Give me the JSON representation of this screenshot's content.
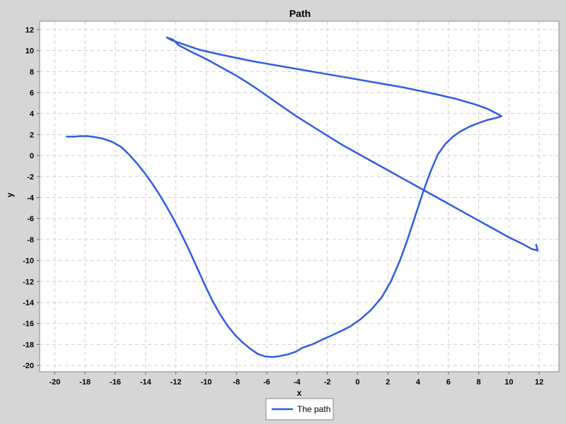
{
  "chart_data": {
    "type": "line",
    "title": "Path",
    "xlabel": "x",
    "ylabel": "y",
    "xlim": [
      -21,
      13.3
    ],
    "ylim": [
      -20.6,
      12.8
    ],
    "x_ticks": [
      -20,
      -18,
      -16,
      -14,
      -12,
      -10,
      -8,
      -6,
      -4,
      -2,
      0,
      2,
      4,
      6,
      8,
      10,
      12
    ],
    "y_ticks": [
      12,
      10,
      8,
      6,
      4,
      2,
      0,
      -2,
      -4,
      -6,
      -8,
      -10,
      -12,
      -14,
      -16,
      -18,
      -20
    ],
    "grid": true,
    "legend_position": "bottom-center",
    "colors": {
      "series": "#2f5ce6",
      "plot_bg": "#ffffff",
      "page_bg": "#d6d6d6",
      "grid": "#cfcfcf"
    },
    "series": [
      {
        "name": "The path",
        "points": [
          [
            -19.2,
            1.8
          ],
          [
            -18.8,
            1.8
          ],
          [
            -18.3,
            1.85
          ],
          [
            -17.8,
            1.85
          ],
          [
            -17.3,
            1.75
          ],
          [
            -16.8,
            1.6
          ],
          [
            -16.2,
            1.3
          ],
          [
            -15.6,
            0.8
          ],
          [
            -15.1,
            0.1
          ],
          [
            -14.6,
            -0.7
          ],
          [
            -14.1,
            -1.6
          ],
          [
            -13.6,
            -2.6
          ],
          [
            -13.1,
            -3.7
          ],
          [
            -12.6,
            -4.9
          ],
          [
            -12.1,
            -6.2
          ],
          [
            -11.6,
            -7.6
          ],
          [
            -11.1,
            -9.1
          ],
          [
            -10.6,
            -10.7
          ],
          [
            -10.1,
            -12.3
          ],
          [
            -9.6,
            -13.8
          ],
          [
            -9.1,
            -15.1
          ],
          [
            -8.6,
            -16.2
          ],
          [
            -8.1,
            -17.1
          ],
          [
            -7.6,
            -17.8
          ],
          [
            -7.1,
            -18.4
          ],
          [
            -6.6,
            -18.9
          ],
          [
            -6.1,
            -19.15
          ],
          [
            -5.6,
            -19.2
          ],
          [
            -5.1,
            -19.1
          ],
          [
            -4.6,
            -18.95
          ],
          [
            -4.1,
            -18.7
          ],
          [
            -3.6,
            -18.3
          ],
          [
            -3.0,
            -18.0
          ],
          [
            -2.4,
            -17.6
          ],
          [
            -1.8,
            -17.2
          ],
          [
            -1.2,
            -16.8
          ],
          [
            -0.5,
            -16.3
          ],
          [
            0.2,
            -15.6
          ],
          [
            0.9,
            -14.7
          ],
          [
            1.6,
            -13.5
          ],
          [
            2.2,
            -12.0
          ],
          [
            2.8,
            -10.0
          ],
          [
            3.3,
            -8.0
          ],
          [
            3.8,
            -5.8
          ],
          [
            4.3,
            -3.6
          ],
          [
            4.8,
            -1.6
          ],
          [
            5.3,
            0.1
          ],
          [
            5.8,
            1.1
          ],
          [
            6.3,
            1.8
          ],
          [
            6.8,
            2.3
          ],
          [
            7.4,
            2.75
          ],
          [
            8.0,
            3.1
          ],
          [
            8.6,
            3.4
          ],
          [
            9.2,
            3.6
          ],
          [
            9.5,
            3.75
          ],
          [
            9.2,
            4.0
          ],
          [
            8.5,
            4.5
          ],
          [
            7.7,
            4.9
          ],
          [
            6.5,
            5.4
          ],
          [
            5.0,
            5.9
          ],
          [
            3.0,
            6.5
          ],
          [
            1.0,
            7.0
          ],
          [
            -1.0,
            7.5
          ],
          [
            -3.0,
            8.0
          ],
          [
            -5.0,
            8.5
          ],
          [
            -7.0,
            9.0
          ],
          [
            -9.0,
            9.6
          ],
          [
            -10.5,
            10.1
          ],
          [
            -11.5,
            10.6
          ],
          [
            -12.3,
            11.0
          ],
          [
            -12.6,
            11.25
          ],
          [
            -12.2,
            11.05
          ],
          [
            -11.8,
            10.5
          ],
          [
            -11.0,
            9.9
          ],
          [
            -10.0,
            9.2
          ],
          [
            -9.0,
            8.4
          ],
          [
            -8.0,
            7.6
          ],
          [
            -7.0,
            6.7
          ],
          [
            -6.0,
            5.7
          ],
          [
            -5.0,
            4.7
          ],
          [
            -4.0,
            3.7
          ],
          [
            -3.0,
            2.8
          ],
          [
            -2.0,
            1.9
          ],
          [
            -1.0,
            1.0
          ],
          [
            0.0,
            0.2
          ],
          [
            1.0,
            -0.6
          ],
          [
            2.0,
            -1.4
          ],
          [
            3.0,
            -2.2
          ],
          [
            4.0,
            -3.0
          ],
          [
            5.0,
            -3.8
          ],
          [
            6.0,
            -4.6
          ],
          [
            7.0,
            -5.4
          ],
          [
            8.0,
            -6.2
          ],
          [
            9.0,
            -7.0
          ],
          [
            10.0,
            -7.8
          ],
          [
            11.0,
            -8.5
          ],
          [
            11.5,
            -8.9
          ],
          [
            11.9,
            -9.05
          ],
          [
            11.8,
            -8.5
          ]
        ]
      }
    ]
  }
}
